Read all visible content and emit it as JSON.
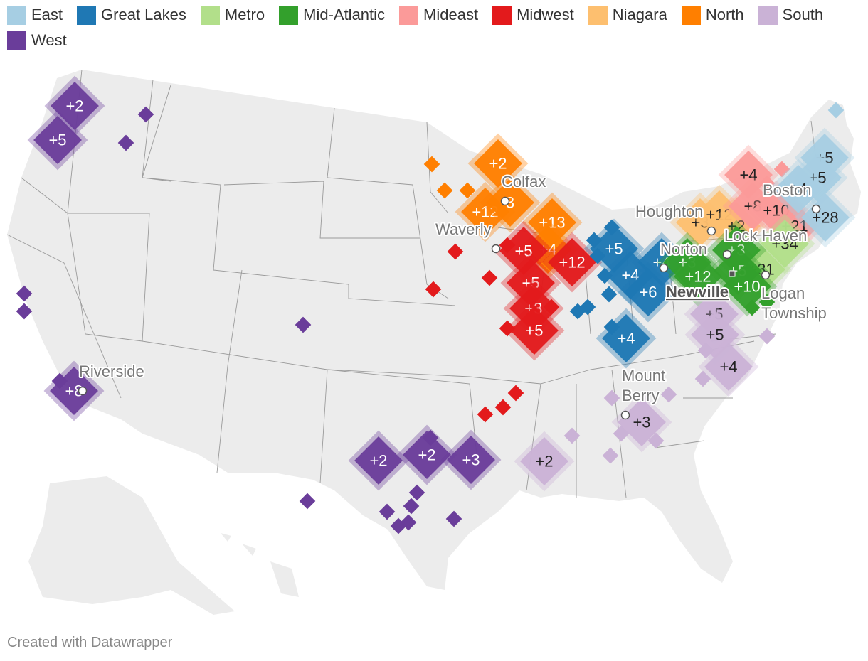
{
  "legend": [
    {
      "name": "East",
      "color": "#a6cee3"
    },
    {
      "name": "Great Lakes",
      "color": "#1f78b4"
    },
    {
      "name": "Metro",
      "color": "#b2df8a"
    },
    {
      "name": "Mid-Atlantic",
      "color": "#33a02c"
    },
    {
      "name": "Mideast",
      "color": "#fb9a99"
    },
    {
      "name": "Midwest",
      "color": "#e31a1c"
    },
    {
      "name": "Niagara",
      "color": "#fdbf6f"
    },
    {
      "name": "North",
      "color": "#ff7f00"
    },
    {
      "name": "South",
      "color": "#cab2d6"
    },
    {
      "name": "West",
      "color": "#6a3d9a"
    }
  ],
  "markers": [
    {
      "region": "West",
      "label": "+2",
      "size": "large"
    },
    {
      "region": "West",
      "label": "+5",
      "size": "large"
    },
    {
      "region": "West",
      "label": "",
      "size": "small"
    },
    {
      "region": "West",
      "label": "",
      "size": "small"
    },
    {
      "region": "West",
      "label": "",
      "size": "small"
    },
    {
      "region": "West",
      "label": "",
      "size": "small"
    },
    {
      "region": "West",
      "label": "",
      "size": "small"
    },
    {
      "region": "West",
      "label": "+8",
      "size": "large"
    },
    {
      "region": "West",
      "label": "",
      "size": "small"
    },
    {
      "region": "West",
      "label": "+2",
      "size": "large"
    },
    {
      "region": "West",
      "label": "+2",
      "size": "large"
    },
    {
      "region": "West",
      "label": "+3",
      "size": "large"
    },
    {
      "region": "West",
      "label": "",
      "size": "small"
    },
    {
      "region": "West",
      "label": "",
      "size": "small"
    },
    {
      "region": "West",
      "label": "",
      "size": "small"
    },
    {
      "region": "West",
      "label": "",
      "size": "small"
    },
    {
      "region": "West",
      "label": "",
      "size": "small"
    },
    {
      "region": "West",
      "label": "",
      "size": "small"
    },
    {
      "region": "West",
      "label": "",
      "size": "small"
    },
    {
      "region": "West",
      "label": "",
      "size": "small"
    },
    {
      "region": "North",
      "label": "+2",
      "size": "large"
    },
    {
      "region": "North",
      "label": "+12",
      "size": "large"
    },
    {
      "region": "North",
      "label": "3",
      "size": "large"
    },
    {
      "region": "North",
      "label": "+13",
      "size": "large"
    },
    {
      "region": "North",
      "label": "+4",
      "size": "large"
    },
    {
      "region": "North",
      "label": "",
      "size": "small"
    },
    {
      "region": "North",
      "label": "",
      "size": "small"
    },
    {
      "region": "North",
      "label": "",
      "size": "small"
    },
    {
      "region": "Midwest",
      "label": "+5",
      "size": "large"
    },
    {
      "region": "Midwest",
      "label": "+12",
      "size": "large"
    },
    {
      "region": "Midwest",
      "label": "+5",
      "size": "large"
    },
    {
      "region": "Midwest",
      "label": "+3",
      "size": "large"
    },
    {
      "region": "Midwest",
      "label": "+5",
      "size": "large"
    },
    {
      "region": "Midwest",
      "label": "",
      "size": "small"
    },
    {
      "region": "Midwest",
      "label": "",
      "size": "small"
    },
    {
      "region": "Midwest",
      "label": "",
      "size": "small"
    },
    {
      "region": "Midwest",
      "label": "",
      "size": "small"
    },
    {
      "region": "Midwest",
      "label": "",
      "size": "small"
    },
    {
      "region": "Midwest",
      "label": "",
      "size": "small"
    },
    {
      "region": "Midwest",
      "label": "",
      "size": "small"
    },
    {
      "region": "Midwest",
      "label": "",
      "size": "small"
    },
    {
      "region": "Midwest",
      "label": "",
      "size": "small"
    },
    {
      "region": "Great Lakes",
      "label": "+5",
      "size": "large"
    },
    {
      "region": "Great Lakes",
      "label": "+4",
      "size": "large"
    },
    {
      "region": "Great Lakes",
      "label": "+4",
      "size": "large"
    },
    {
      "region": "Great Lakes",
      "label": "+6",
      "size": "large"
    },
    {
      "region": "Great Lakes",
      "label": "+4",
      "size": "large"
    },
    {
      "region": "Great Lakes",
      "label": "",
      "size": "small"
    },
    {
      "region": "Great Lakes",
      "label": "",
      "size": "small"
    },
    {
      "region": "Great Lakes",
      "label": "",
      "size": "small"
    },
    {
      "region": "Great Lakes",
      "label": "",
      "size": "small"
    },
    {
      "region": "Great Lakes",
      "label": "",
      "size": "small"
    },
    {
      "region": "Great Lakes",
      "label": "",
      "size": "small"
    },
    {
      "region": "Great Lakes",
      "label": "",
      "size": "small"
    },
    {
      "region": "Great Lakes",
      "label": "",
      "size": "small"
    },
    {
      "region": "Niagara",
      "label": "+3",
      "size": "large"
    },
    {
      "region": "Niagara",
      "label": "+12",
      "size": "large"
    },
    {
      "region": "Niagara",
      "label": "+2",
      "size": "large"
    },
    {
      "region": "Mideast",
      "label": "+4",
      "size": "large"
    },
    {
      "region": "Mideast",
      "label": "+8",
      "size": "large"
    },
    {
      "region": "Mideast",
      "label": "+10",
      "size": "large"
    },
    {
      "region": "Mideast",
      "label": "+21",
      "size": "large"
    },
    {
      "region": "Mideast",
      "label": "",
      "size": "small"
    },
    {
      "region": "Mideast",
      "label": "",
      "size": "small"
    },
    {
      "region": "East",
      "label": "+5",
      "size": "large"
    },
    {
      "region": "East",
      "label": "+5",
      "size": "large"
    },
    {
      "region": "East",
      "label": "+4",
      "size": "large"
    },
    {
      "region": "East",
      "label": "+28",
      "size": "large"
    },
    {
      "region": "East",
      "label": "",
      "size": "small"
    },
    {
      "region": "Metro",
      "label": "+34",
      "size": "large"
    },
    {
      "region": "Metro",
      "label": "+31",
      "size": "large"
    },
    {
      "region": "Mid-Atlantic",
      "label": "+3",
      "size": "large"
    },
    {
      "region": "Mid-Atlantic",
      "label": "+12",
      "size": "large"
    },
    {
      "region": "Mid-Atlantic",
      "label": "+3",
      "size": "large"
    },
    {
      "region": "Mid-Atlantic",
      "label": "+5",
      "size": "large"
    },
    {
      "region": "Mid-Atlantic",
      "label": "+10",
      "size": "large"
    },
    {
      "region": "Mid-Atlantic",
      "label": "",
      "size": "small"
    },
    {
      "region": "Mid-Atlantic",
      "label": "",
      "size": "small"
    },
    {
      "region": "South",
      "label": "+5",
      "size": "large"
    },
    {
      "region": "South",
      "label": "+5",
      "size": "large"
    },
    {
      "region": "South",
      "label": "+4",
      "size": "large"
    },
    {
      "region": "South",
      "label": "+3",
      "size": "large"
    },
    {
      "region": "South",
      "label": "+2",
      "size": "large"
    },
    {
      "region": "South",
      "label": "",
      "size": "small"
    },
    {
      "region": "South",
      "label": "",
      "size": "small"
    },
    {
      "region": "South",
      "label": "",
      "size": "small"
    },
    {
      "region": "South",
      "label": "",
      "size": "small"
    },
    {
      "region": "South",
      "label": "",
      "size": "small"
    },
    {
      "region": "South",
      "label": "",
      "size": "small"
    },
    {
      "region": "South",
      "label": "",
      "size": "small"
    },
    {
      "region": "South",
      "label": "",
      "size": "small"
    },
    {
      "region": "South",
      "label": "",
      "size": "small"
    }
  ],
  "cities": [
    {
      "name": "Colfax",
      "style": "normal"
    },
    {
      "name": "Waverly",
      "style": "normal"
    },
    {
      "name": "Houghton",
      "style": "normal"
    },
    {
      "name": "Boston",
      "style": "normal"
    },
    {
      "name": "Lock Haven",
      "style": "normal"
    },
    {
      "name": "Norton",
      "style": "normal"
    },
    {
      "name": "Newville",
      "style": "highlight"
    },
    {
      "name": "Logan Township",
      "style": "normal"
    },
    {
      "name": "Mount Berry",
      "style": "normal"
    },
    {
      "name": "Riverside",
      "style": "normal"
    }
  ],
  "credit": "Created with Datawrapper"
}
